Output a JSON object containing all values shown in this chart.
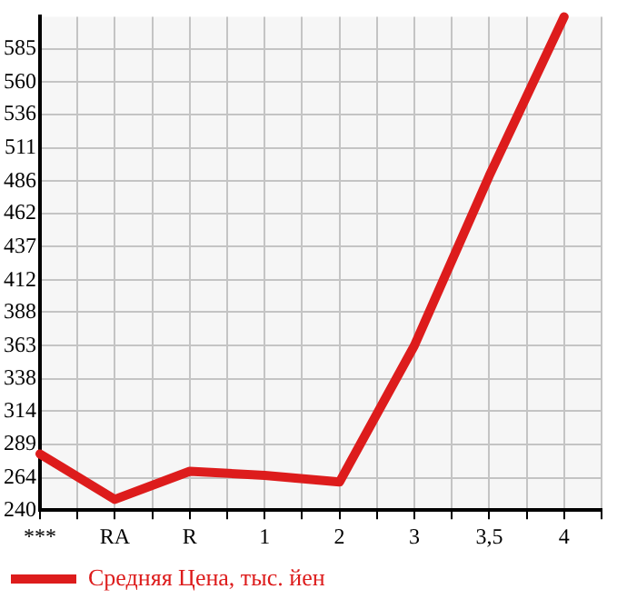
{
  "chart_data": {
    "type": "line",
    "categories": [
      "***",
      "RA",
      "R",
      "1",
      "2",
      "3",
      "3,5",
      "4"
    ],
    "series": [
      {
        "name": "Средняя Цена, тыс. йен",
        "color": "#dd1c1c",
        "values": [
          282,
          248,
          269,
          266,
          261,
          363,
          490,
          609
        ]
      }
    ],
    "ylim": [
      240,
      609
    ],
    "yticks": [
      240,
      264,
      289,
      314,
      338,
      363,
      388,
      412,
      437,
      462,
      486,
      511,
      536,
      560,
      585
    ],
    "grid": true,
    "legend": "bottom left",
    "marker": "none",
    "line_style": "solid"
  }
}
